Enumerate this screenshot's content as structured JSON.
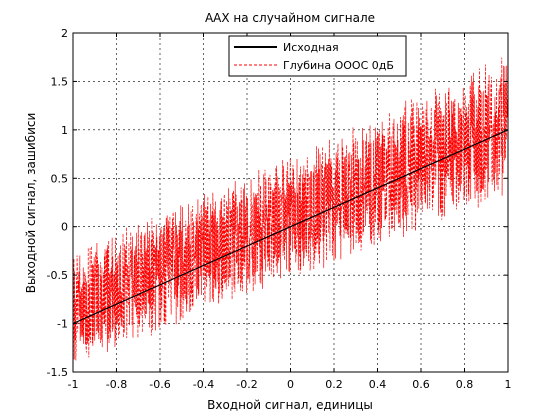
{
  "chart_data": {
    "type": "line",
    "title": "ААХ на случайном сигнале",
    "xlabel": "Входной сигнал, единицы",
    "ylabel": "Выходной сигнал, зашибиси",
    "xlim": [
      -1,
      1
    ],
    "ylim": [
      -1.5,
      2
    ],
    "xticks": [
      -1,
      -0.8,
      -0.6,
      -0.4,
      -0.2,
      0,
      0.2,
      0.4,
      0.6,
      0.8,
      1
    ],
    "xtick_labels": [
      "-1",
      "-0.8",
      "-0.6",
      "-0.4",
      "-0.2",
      "0",
      "0.2",
      "0.4",
      "0.6",
      "0.8",
      "1"
    ],
    "yticks": [
      -1.5,
      -1,
      -0.5,
      0,
      0.5,
      1,
      1.5,
      2
    ],
    "ytick_labels": [
      "-1.5",
      "-1",
      "-0.5",
      "0",
      "0.5",
      "1",
      "1.5",
      "2"
    ],
    "grid": true,
    "legend_position": "top-right",
    "series": [
      {
        "name": "Исходная",
        "color": "#000000",
        "style": "solid",
        "x": [
          -1,
          1
        ],
        "y": [
          -1,
          1
        ]
      },
      {
        "name": "Глубина ОООС 0дБ",
        "color": "#ff0000",
        "style": "dashed",
        "pattern": "noisy band around the line y = x",
        "x": [
          -1,
          1
        ],
        "y_lower": [
          -1.45,
          0.3
        ],
        "y_upper": [
          -0.25,
          1.8
        ]
      }
    ]
  }
}
